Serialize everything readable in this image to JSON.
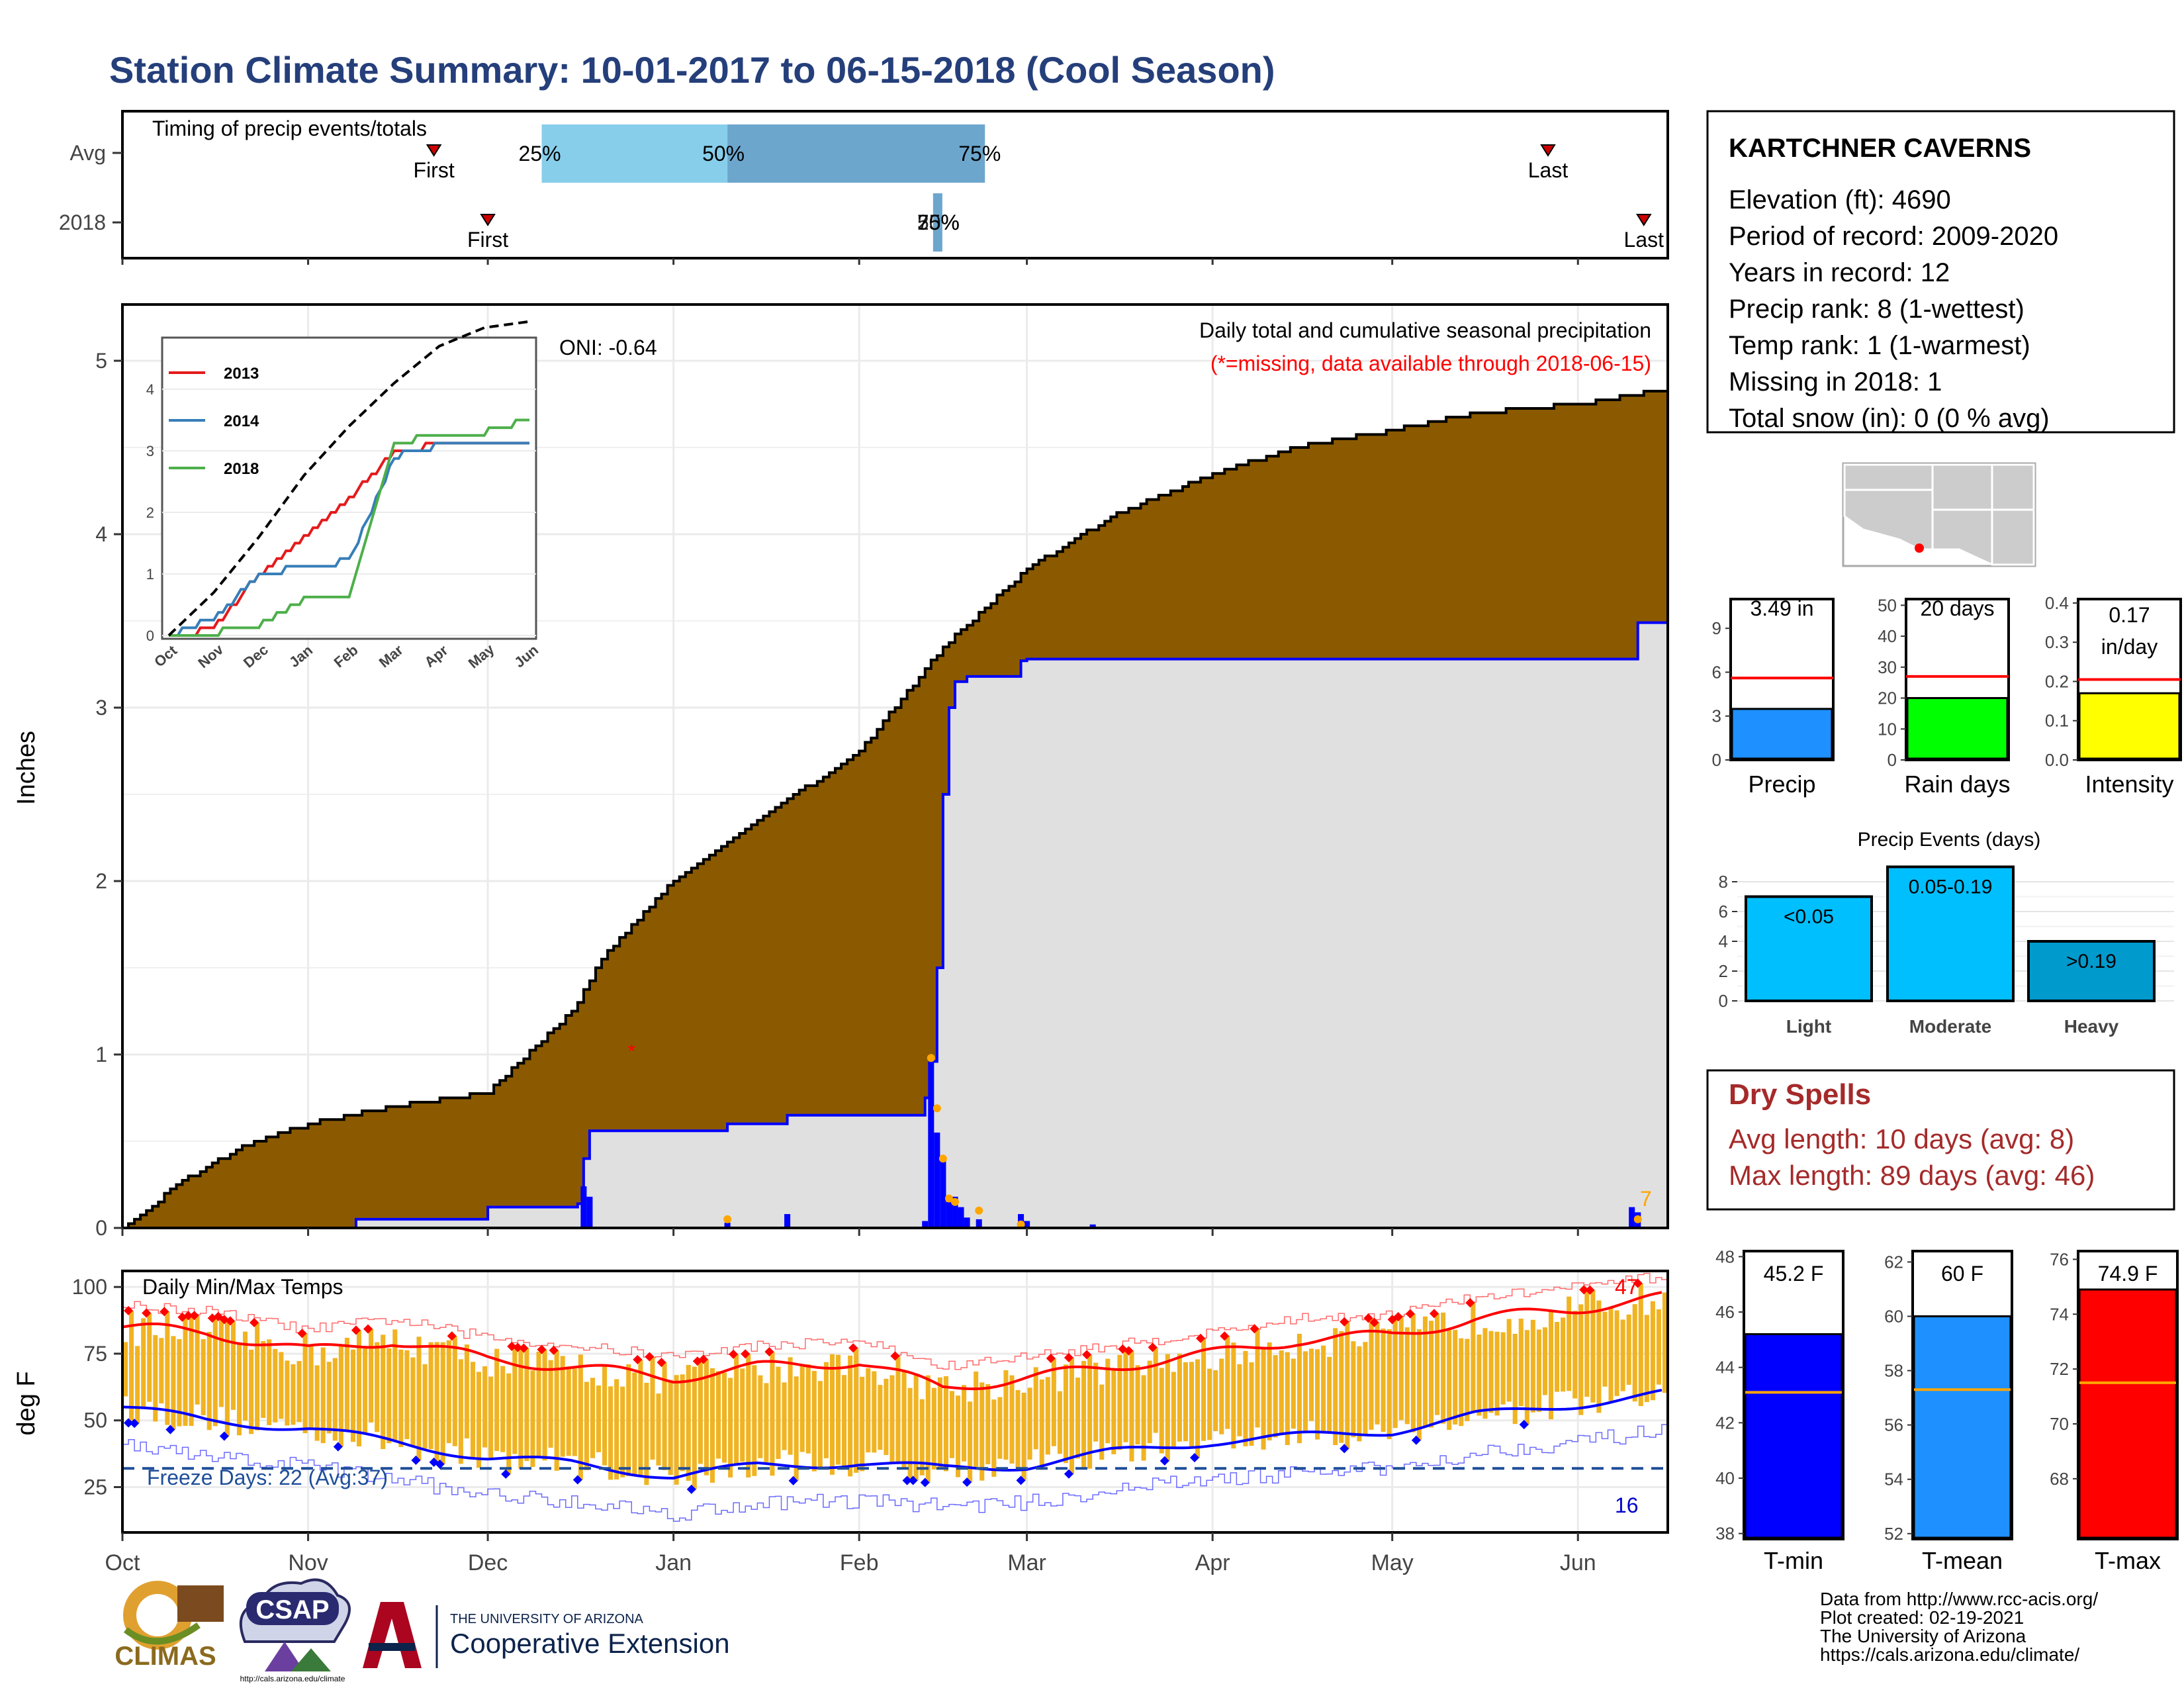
{
  "title": "Station Climate Summary: 10-01-2017 to 06-15-2018 (Cool Season)",
  "colors": {
    "title": "#253f7b",
    "brown": "#8b5a00",
    "gray_area": "#e0e0e0",
    "blue": "#0000ff",
    "orange": "#ffa500",
    "red": "#ff0000",
    "temp_bar": "#f0b322",
    "light_blue": "#87ceeb",
    "steel_blue": "#6ca6cd",
    "precip_blue": "#1e90ff",
    "green": "#00ff00",
    "yellow": "#ffff00",
    "deep_sky": "#00bfff",
    "heavy_blue": "#009acd",
    "dry_red": "#a52a2a"
  },
  "timing": {
    "title": "Timing of precip events/totals",
    "rows": [
      "Avg",
      "2018"
    ],
    "avg": {
      "first_label": "First",
      "last_label": "Last",
      "first": "2017-11-22",
      "last": "2018-05-27",
      "pct25": "2017-12-10",
      "pct50": "2018-01-10",
      "pct75": "2018-02-22",
      "lab25": "25%",
      "lab50": "50%",
      "lab75": "75%"
    },
    "y2018": {
      "first_label": "First",
      "last_label": "Last",
      "first": "2017-12-01",
      "last": "2018-06-12",
      "cluster": "2018-02-14",
      "cluster_labels": [
        "25%",
        "50%",
        "75%"
      ]
    }
  },
  "precip_panel": {
    "ylabel": "Inches",
    "oni": "ONI: -0.64",
    "subtitle": "Daily total and cumulative seasonal precipitation",
    "missing_note": "(*=missing, data available through 2018-06-15)",
    "missing_count": "7",
    "yticks": [
      "0",
      "1",
      "2",
      "3",
      "4",
      "5"
    ]
  },
  "inset": {
    "legend": [
      "2013",
      "2014",
      "2018"
    ],
    "yticks": [
      "0",
      "1",
      "2",
      "3",
      "4"
    ],
    "xticks": [
      "Oct",
      "Nov",
      "Dec",
      "Jan",
      "Feb",
      "Mar",
      "Apr",
      "May",
      "Jun"
    ]
  },
  "temp_panel": {
    "title": "Daily Min/Max Temps",
    "ylabel": "deg F",
    "freeze": "Freeze Days: 22 (Avg:37)",
    "hot_count": "47",
    "cold_count": "16",
    "yticks": [
      "25",
      "50",
      "75",
      "100"
    ]
  },
  "months": [
    "Oct",
    "Nov",
    "Dec",
    "Jan",
    "Feb",
    "Mar",
    "Apr",
    "May",
    "Jun"
  ],
  "station": {
    "name": "KARTCHNER CAVERNS",
    "lines": [
      "Elevation (ft): 4690",
      "Period of record: 2009-2020",
      "Years in record: 12",
      "Precip rank: 8 (1-wettest)",
      "Temp rank: 1 (1-warmest)",
      "Missing in 2018: 1",
      "Total snow (in): 0 (0 % avg)"
    ]
  },
  "gauges": [
    {
      "label": "Precip",
      "value_text": "3.49 in",
      "value": 3.49,
      "avg": 5.6,
      "ymax": 11,
      "yticks": [
        "0",
        "3",
        "6",
        "9"
      ],
      "color": "#1e90ff"
    },
    {
      "label": "Rain days",
      "value_text": "20 days",
      "value": 20,
      "avg": 27,
      "ymax": 52,
      "yticks": [
        "0",
        "10",
        "20",
        "30",
        "40",
        "50"
      ],
      "color": "#00ff00"
    },
    {
      "label": "Intensity",
      "value_text_lines": [
        "0.17",
        "in/day"
      ],
      "value": 0.17,
      "avg": 0.205,
      "ymax": 0.41,
      "yticks": [
        "0.0",
        "0.1",
        "0.2",
        "0.3",
        "0.4"
      ],
      "color": "#ffff00"
    }
  ],
  "events": {
    "title": "Precip Events (days)",
    "categories": [
      "Light",
      "Moderate",
      "Heavy"
    ],
    "labels": [
      "<0.05",
      "0.05-0.19",
      ">0.19"
    ],
    "values": [
      7,
      9,
      4
    ],
    "yticks": [
      "0",
      "2",
      "4",
      "6",
      "8"
    ]
  },
  "dry": {
    "title": "Dry Spells",
    "avg": "Avg length: 10 days (avg: 8)",
    "max": "Max length: 89 days (avg: 46)"
  },
  "temps": [
    {
      "label": "T-min",
      "value_text": "45.2 F",
      "value": 45.2,
      "avg": 43.1,
      "ymin": 37.8,
      "ymax": 48.2,
      "yticks": [
        "38",
        "40",
        "42",
        "44",
        "46",
        "48"
      ],
      "color": "#0000ff"
    },
    {
      "label": "T-mean",
      "value_text": "60 F",
      "value": 60.0,
      "avg": 57.3,
      "ymin": 51.8,
      "ymax": 62.4,
      "yticks": [
        "52",
        "54",
        "56",
        "58",
        "60",
        "62"
      ],
      "color": "#1e90ff"
    },
    {
      "label": "T-max",
      "value_text": "74.9 F",
      "value": 74.9,
      "avg": 71.5,
      "ymin": 65.8,
      "ymax": 76.3,
      "yticks": [
        "68",
        "70",
        "72",
        "74",
        "76"
      ],
      "color": "#ff0000"
    }
  ],
  "footer": {
    "credits": [
      "Data from http://www.rcc-acis.org/",
      "Plot created: 02-19-2021",
      "The University of Arizona",
      "https://cals.arizona.edu/climate/"
    ],
    "logo_climas": "CLIMAS",
    "logo_csap": "CSAP",
    "csap_url": "http://cals.arizona.edu/climate",
    "ua_top": "THE UNIVERSITY OF ARIZONA",
    "ua_bottom": "Cooperative Extension"
  },
  "chart_data": [
    {
      "type": "area",
      "title": "Daily total and cumulative seasonal precipitation",
      "ylabel": "Inches",
      "ylim": [
        0,
        5.3
      ],
      "x_range": [
        "2017-10-01",
        "2018-06-15"
      ],
      "series": [
        {
          "name": "cumulative",
          "x": [
            "2017-10-01",
            "2017-10-05",
            "2017-10-10",
            "2017-10-20",
            "2017-11-01",
            "2017-11-15",
            "2017-12-01",
            "2017-12-15",
            "2017-12-20",
            "2018-01-01",
            "2018-01-15",
            "2018-02-01",
            "2018-02-15",
            "2018-03-01",
            "2018-03-15",
            "2018-04-01",
            "2018-04-15",
            "2018-05-01",
            "2018-05-15",
            "2018-06-01",
            "2018-06-15"
          ],
          "values": [
            0.0,
            0.1,
            0.25,
            0.45,
            0.6,
            0.7,
            0.78,
            1.25,
            1.55,
            2.0,
            2.35,
            2.75,
            3.35,
            3.8,
            4.1,
            4.35,
            4.5,
            4.6,
            4.7,
            4.75,
            4.83
          ]
        },
        {
          "name": "2018 season",
          "x": [
            "2017-10-01",
            "2017-11-01",
            "2017-11-09",
            "2017-12-01",
            "2017-12-16",
            "2017-12-17",
            "2017-12-18",
            "2018-01-10",
            "2018-01-20",
            "2018-02-12",
            "2018-02-13",
            "2018-02-14",
            "2018-02-15",
            "2018-02-16",
            "2018-02-17",
            "2018-02-18",
            "2018-02-19",
            "2018-02-21",
            "2018-02-28",
            "2018-03-01",
            "2018-06-10",
            "2018-06-11",
            "2018-06-15"
          ],
          "values": [
            0,
            0,
            0.05,
            0.12,
            0.14,
            0.4,
            0.56,
            0.6,
            0.65,
            0.75,
            0.96,
            1.5,
            2.5,
            3.0,
            3.15,
            3.15,
            3.18,
            3.18,
            3.27,
            3.28,
            3.28,
            3.49,
            3.49
          ]
        }
      ]
    },
    {
      "type": "line",
      "title": "",
      "x": [
        "Oct",
        "Nov",
        "Dec",
        "Jan",
        "Feb",
        "Mar",
        "Apr",
        "May",
        "Jun"
      ],
      "series": [
        {
          "name": "2013",
          "values": [
            0,
            0.1,
            1.0,
            1.6,
            2.2,
            3.0,
            3.1,
            3.1,
            3.1
          ]
        },
        {
          "name": "2014",
          "values": [
            0,
            0.3,
            0.95,
            1.15,
            1.2,
            2.9,
            3.1,
            3.1,
            3.1
          ]
        },
        {
          "name": "2018",
          "values": [
            0,
            0.05,
            0.15,
            0.6,
            0.6,
            3.1,
            3.3,
            3.3,
            3.5
          ]
        },
        {
          "name": "average",
          "values": [
            0,
            0.7,
            1.6,
            2.6,
            3.4,
            4.1,
            4.7,
            5.0,
            5.1
          ]
        }
      ]
    },
    {
      "type": "bar",
      "title": "Daily Min/Max Temps",
      "ylabel": "deg F",
      "ylim": [
        8,
        106
      ],
      "x_range": [
        "2017-10-01",
        "2018-06-15"
      ],
      "series": [
        {
          "name": "max",
          "x": [
            "2017-10-01",
            "2017-10-15",
            "2017-11-01",
            "2017-11-15",
            "2017-12-01",
            "2017-12-15",
            "2018-01-01",
            "2018-01-15",
            "2018-02-01",
            "2018-02-15",
            "2018-03-01",
            "2018-03-15",
            "2018-04-01",
            "2018-04-15",
            "2018-05-01",
            "2018-05-15",
            "2018-06-01",
            "2018-06-15"
          ],
          "values": [
            85,
            83,
            76,
            80,
            73,
            70,
            66,
            70,
            72,
            62,
            66,
            70,
            75,
            80,
            82,
            88,
            92,
            96
          ]
        },
        {
          "name": "min",
          "x": [
            "2017-10-01",
            "2017-10-15",
            "2017-11-01",
            "2017-11-15",
            "2017-12-01",
            "2017-12-15",
            "2018-01-01",
            "2018-01-15",
            "2018-02-01",
            "2018-02-15",
            "2018-03-01",
            "2018-03-15",
            "2018-04-01",
            "2018-04-15",
            "2018-05-01",
            "2018-05-15",
            "2018-06-01",
            "2018-06-15"
          ],
          "values": [
            55,
            50,
            47,
            42,
            36,
            34,
            29,
            33,
            34,
            32,
            33,
            38,
            42,
            44,
            46,
            52,
            56,
            60
          ]
        }
      ]
    }
  ]
}
